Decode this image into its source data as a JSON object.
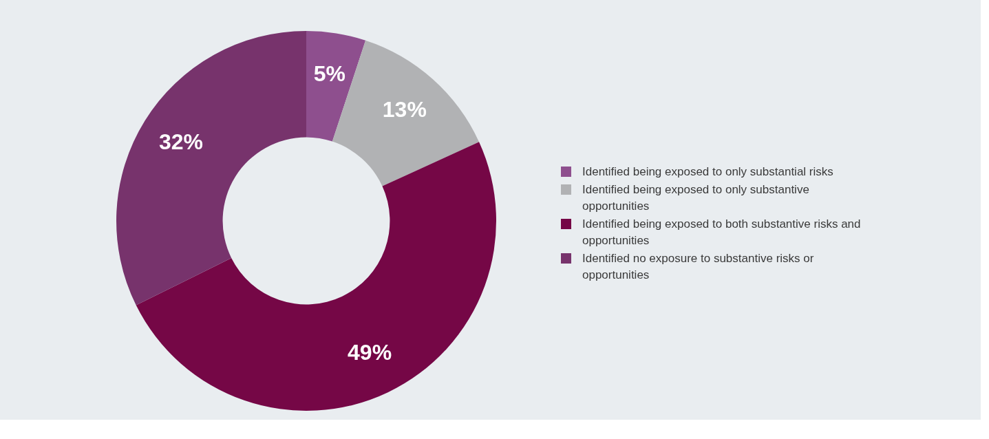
{
  "chart_data": {
    "type": "donut",
    "categories": [
      "Identified being exposed to only substantial risks",
      "Identified being exposed to only substantive opportunities",
      "Identified being exposed to both substantive risks and opportunities",
      "Identified no exposure to substantive risks or opportunities"
    ],
    "values": [
      5,
      13,
      49,
      32
    ],
    "colors": [
      "#8e4f8e",
      "#b1b2b4",
      "#750746",
      "#77336c"
    ],
    "value_labels": [
      "5%",
      "13%",
      "49%",
      "32%"
    ],
    "legend": "right"
  }
}
